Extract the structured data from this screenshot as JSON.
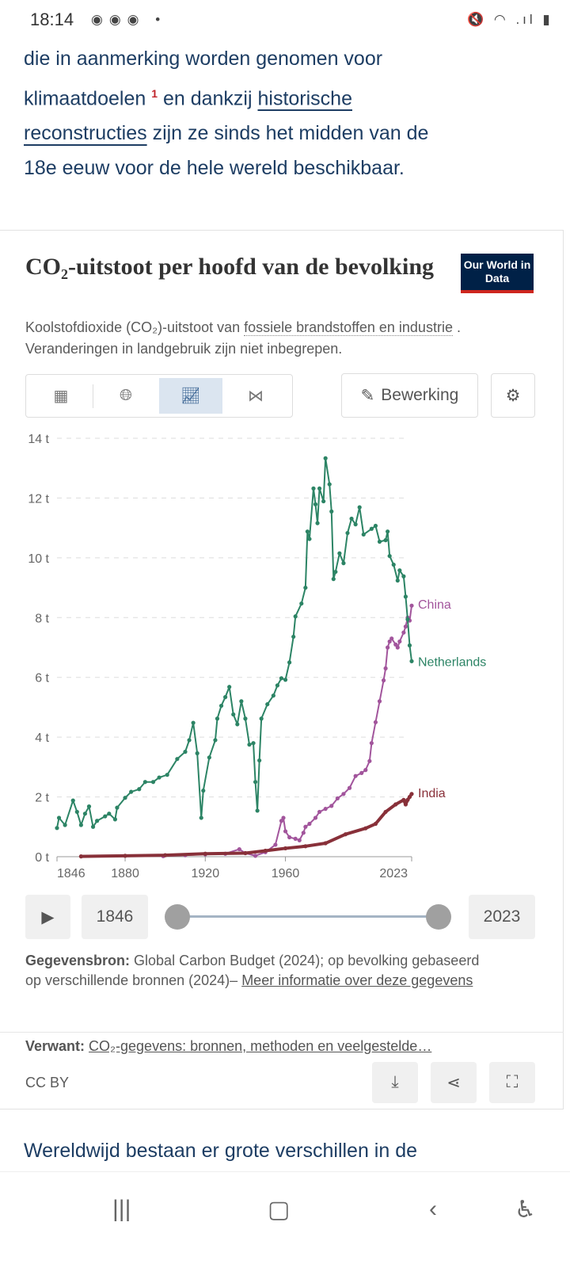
{
  "status_bar": {
    "time": "18:14",
    "icons": [
      "notification-icon",
      "notification-icon",
      "notification-icon",
      "dot-icon",
      "mute-icon",
      "wifi-icon",
      "signal-icon",
      "battery-icon"
    ]
  },
  "article": {
    "line1": "die in aanmerking worden genomen voor",
    "line2a": "klimaatdoelen ",
    "footnote": "1",
    "line2b": " en dankzij ",
    "link1": "historische",
    "link2": "reconstructies",
    "line3b": " zijn ze sinds het midden van de",
    "line4": "18e eeuw voor de hele wereld beschikbaar.",
    "next_para": "Wereldwijd bestaan er grote verschillen in de"
  },
  "chart_card": {
    "title": "CO₂-uitstoot per hoofd van de bevolking",
    "logo": "Our World in Data",
    "subtitle_a": "Koolstofdioxide (CO₂)-uitstoot van ",
    "subtitle_link": "fossiele brandstoffen en industrie",
    "subtitle_b": " . Veranderingen in landgebruik zijn niet inbegrepen.",
    "tabs": [
      {
        "icon": "table-icon"
      },
      {
        "icon": "globe-icon"
      },
      {
        "icon": "line-chart-icon",
        "active": true
      },
      {
        "icon": "slope-chart-icon"
      }
    ],
    "edit_label": "Bewerking",
    "timeline": {
      "start": "1846",
      "end": "2023",
      "play_icon": "play-icon"
    },
    "source_label": "Gegevensbron:",
    "source_text": " Global Carbon Budget (2024); op bevolking gebaseerd",
    "source_text2": "op verschillende bronnen (2024)– ",
    "source_link": "Meer informatie over deze gegevens",
    "related_label": "Verwant:",
    "related_link": "CO₂-gegevens: bronnen, methoden en veelgestelde…",
    "license": "CC BY"
  },
  "chart_data": {
    "type": "line",
    "title": "",
    "xlabel": "",
    "ylabel": "",
    "xlim": [
      1846,
      2023
    ],
    "ylim": [
      0,
      14
    ],
    "grid": "horizontal dashed",
    "legend": "inline right labels",
    "y_ticks": [
      "0 t",
      "2 t",
      "4 t",
      "6 t",
      "8 t",
      "10 t",
      "12 t",
      "14 t"
    ],
    "y_tick_values": [
      0,
      2,
      4,
      6,
      8,
      10,
      12,
      14
    ],
    "x_ticks": [
      "1846",
      "1880",
      "1920",
      "1960",
      "2023"
    ],
    "x_tick_values": [
      1846,
      1880,
      1920,
      1960,
      2023
    ],
    "series": [
      {
        "name": "Netherlands",
        "color": "#2c8465",
        "points": [
          [
            1846,
            0.96
          ],
          [
            1847,
            1.3
          ],
          [
            1850,
            1.06
          ],
          [
            1854,
            1.88
          ],
          [
            1856,
            1.5
          ],
          [
            1858,
            1.06
          ],
          [
            1860,
            1.44
          ],
          [
            1862,
            1.68
          ],
          [
            1864,
            1.0
          ],
          [
            1866,
            1.2
          ],
          [
            1870,
            1.35
          ],
          [
            1872,
            1.44
          ],
          [
            1875,
            1.25
          ],
          [
            1876,
            1.64
          ],
          [
            1880,
            1.97
          ],
          [
            1883,
            2.17
          ],
          [
            1887,
            2.26
          ],
          [
            1890,
            2.5
          ],
          [
            1894,
            2.5
          ],
          [
            1897,
            2.65
          ],
          [
            1901,
            2.74
          ],
          [
            1906,
            3.27
          ],
          [
            1910,
            3.51
          ],
          [
            1912,
            3.9
          ],
          [
            1914,
            4.48
          ],
          [
            1916,
            3.46
          ],
          [
            1918,
            1.3
          ],
          [
            1919,
            2.21
          ],
          [
            1922,
            3.32
          ],
          [
            1925,
            3.9
          ],
          [
            1926,
            4.62
          ],
          [
            1928,
            5.05
          ],
          [
            1930,
            5.34
          ],
          [
            1932,
            5.68
          ],
          [
            1934,
            4.76
          ],
          [
            1936,
            4.43
          ],
          [
            1938,
            5.2
          ],
          [
            1940,
            4.62
          ],
          [
            1942,
            3.75
          ],
          [
            1944,
            3.8
          ],
          [
            1945,
            2.5
          ],
          [
            1946,
            1.54
          ],
          [
            1947,
            3.22
          ],
          [
            1948,
            4.62
          ],
          [
            1951,
            5.1
          ],
          [
            1954,
            5.39
          ],
          [
            1956,
            5.73
          ],
          [
            1958,
            5.97
          ],
          [
            1960,
            5.92
          ],
          [
            1962,
            6.5
          ],
          [
            1964,
            7.36
          ],
          [
            1965,
            8.04
          ],
          [
            1968,
            8.47
          ],
          [
            1970,
            9.0
          ],
          [
            1971,
            10.88
          ],
          [
            1972,
            10.63
          ],
          [
            1974,
            12.32
          ],
          [
            1975,
            11.79
          ],
          [
            1976,
            11.16
          ],
          [
            1977,
            12.32
          ],
          [
            1979,
            11.89
          ],
          [
            1980,
            13.33
          ],
          [
            1982,
            12.46
          ],
          [
            1983,
            11.55
          ],
          [
            1984,
            9.29
          ],
          [
            1985,
            9.53
          ],
          [
            1987,
            10.15
          ],
          [
            1989,
            9.82
          ],
          [
            1991,
            10.83
          ],
          [
            1993,
            11.31
          ],
          [
            1995,
            11.12
          ],
          [
            1997,
            11.69
          ],
          [
            1999,
            10.78
          ],
          [
            2003,
            10.97
          ],
          [
            2005,
            11.07
          ],
          [
            2007,
            10.54
          ],
          [
            2010,
            10.59
          ],
          [
            2011,
            10.88
          ],
          [
            2012,
            10.06
          ],
          [
            2014,
            9.77
          ],
          [
            2016,
            9.24
          ],
          [
            2017,
            9.58
          ],
          [
            2019,
            9.38
          ],
          [
            2020,
            8.7
          ],
          [
            2021,
            7.94
          ],
          [
            2022,
            7.07
          ],
          [
            2023,
            6.54
          ]
        ]
      },
      {
        "name": "China",
        "color": "#a2559c",
        "points": [
          [
            1899,
            0.02
          ],
          [
            1910,
            0.05
          ],
          [
            1920,
            0.08
          ],
          [
            1930,
            0.1
          ],
          [
            1937,
            0.25
          ],
          [
            1940,
            0.12
          ],
          [
            1945,
            0.03
          ],
          [
            1950,
            0.15
          ],
          [
            1955,
            0.4
          ],
          [
            1958,
            1.2
          ],
          [
            1959,
            1.3
          ],
          [
            1960,
            0.85
          ],
          [
            1962,
            0.65
          ],
          [
            1965,
            0.6
          ],
          [
            1967,
            0.55
          ],
          [
            1969,
            0.8
          ],
          [
            1970,
            1.0
          ],
          [
            1972,
            1.1
          ],
          [
            1975,
            1.3
          ],
          [
            1977,
            1.5
          ],
          [
            1980,
            1.6
          ],
          [
            1983,
            1.7
          ],
          [
            1986,
            1.95
          ],
          [
            1989,
            2.1
          ],
          [
            1992,
            2.3
          ],
          [
            1995,
            2.7
          ],
          [
            1998,
            2.8
          ],
          [
            2000,
            2.9
          ],
          [
            2002,
            3.2
          ],
          [
            2003,
            3.8
          ],
          [
            2005,
            4.5
          ],
          [
            2007,
            5.2
          ],
          [
            2009,
            5.9
          ],
          [
            2010,
            6.3
          ],
          [
            2011,
            7.0
          ],
          [
            2012,
            7.2
          ],
          [
            2013,
            7.3
          ],
          [
            2015,
            7.1
          ],
          [
            2016,
            7.0
          ],
          [
            2017,
            7.2
          ],
          [
            2019,
            7.5
          ],
          [
            2020,
            7.7
          ],
          [
            2021,
            8.0
          ],
          [
            2022,
            7.9
          ],
          [
            2023,
            8.4
          ]
        ]
      },
      {
        "name": "India",
        "color": "#883039",
        "points": [
          [
            1858,
            0.01
          ],
          [
            1880,
            0.03
          ],
          [
            1900,
            0.05
          ],
          [
            1920,
            0.1
          ],
          [
            1940,
            0.12
          ],
          [
            1950,
            0.2
          ],
          [
            1960,
            0.28
          ],
          [
            1970,
            0.35
          ],
          [
            1980,
            0.45
          ],
          [
            1990,
            0.75
          ],
          [
            2000,
            0.95
          ],
          [
            2005,
            1.1
          ],
          [
            2010,
            1.5
          ],
          [
            2015,
            1.75
          ],
          [
            2019,
            1.9
          ],
          [
            2020,
            1.75
          ],
          [
            2021,
            1.9
          ],
          [
            2022,
            2.0
          ],
          [
            2023,
            2.1
          ]
        ]
      }
    ]
  },
  "nav": {
    "recent_icon": "recent-apps-icon",
    "home_icon": "home-icon",
    "back_icon": "back-icon",
    "accessibility_icon": "accessibility-icon"
  }
}
